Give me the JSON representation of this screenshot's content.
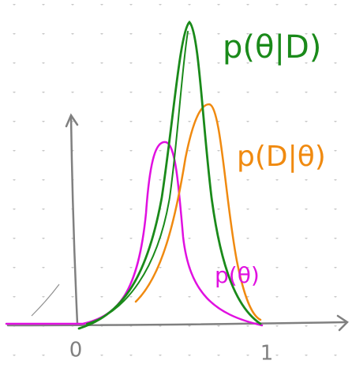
{
  "labels": {
    "posterior": "p(θ|D)",
    "likelihood": "p(D|θ)",
    "prior": "p(θ)"
  },
  "axis": {
    "origin": "0",
    "end": "1"
  }
}
